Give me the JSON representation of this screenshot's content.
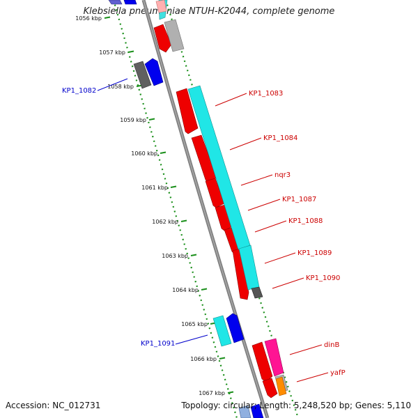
{
  "title": "Klebsiella pneumoniae NTUH-K2044, complete genome",
  "footer": {
    "accession": "Accession: NC_012731",
    "summary": "Topology: circular; Length: 5,248,520 bp; Genes: 5,110"
  },
  "colors": {
    "backbone": "#808080",
    "tick": "#1a8f1a",
    "forward_label": "#cc0000",
    "reverse_label": "#0000cc"
  },
  "ticks": [
    {
      "label": "1056 kbp"
    },
    {
      "label": "1057 kbp"
    },
    {
      "label": "1058 kbp"
    },
    {
      "label": "1059 kbp"
    },
    {
      "label": "1060 kbp"
    },
    {
      "label": "1061 kbp"
    },
    {
      "label": "1062 kbp"
    },
    {
      "label": "1063 kbp"
    },
    {
      "label": "1064 kbp"
    },
    {
      "label": "1065 kbp"
    },
    {
      "label": "1066 kbp"
    },
    {
      "label": "1067 kbp"
    }
  ],
  "gene_labels": [
    {
      "text": "KP1_1082",
      "strand": "reverse"
    },
    {
      "text": "KP1_1083",
      "strand": "forward"
    },
    {
      "text": "KP1_1084",
      "strand": "forward"
    },
    {
      "text": "nqr3",
      "strand": "forward"
    },
    {
      "text": "KP1_1087",
      "strand": "forward"
    },
    {
      "text": "KP1_1088",
      "strand": "forward"
    },
    {
      "text": "KP1_1089",
      "strand": "forward"
    },
    {
      "text": "KP1_1090",
      "strand": "forward"
    },
    {
      "text": "KP1_1091",
      "strand": "reverse"
    },
    {
      "text": "dinB",
      "strand": "forward"
    },
    {
      "text": "yafP",
      "strand": "forward"
    }
  ]
}
